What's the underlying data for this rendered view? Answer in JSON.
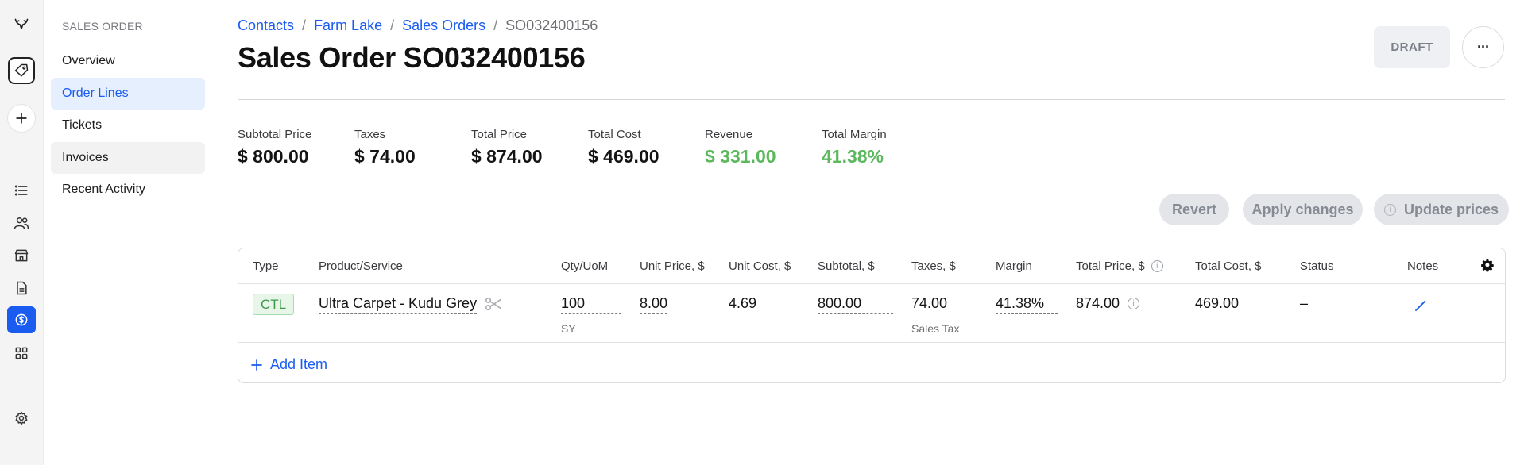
{
  "sidebar": {
    "section_title": "SALES ORDER",
    "items": [
      {
        "label": "Overview"
      },
      {
        "label": "Order Lines"
      },
      {
        "label": "Tickets"
      },
      {
        "label": "Invoices"
      },
      {
        "label": "Recent Activity"
      }
    ]
  },
  "breadcrumb": {
    "items": [
      "Contacts",
      "Farm Lake",
      "Sales Orders"
    ],
    "separator": "/",
    "current": "SO032400156"
  },
  "header": {
    "title": "Sales Order SO032400156",
    "status": "DRAFT",
    "more_label": "···"
  },
  "stats": [
    {
      "label": "Subtotal Price",
      "value": "$ 800.00"
    },
    {
      "label": "Taxes",
      "value": "$ 74.00"
    },
    {
      "label": "Total Price",
      "value": "$ 874.00"
    },
    {
      "label": "Total Cost",
      "value": "$ 469.00"
    },
    {
      "label": "Revenue",
      "value": "$ 331.00"
    },
    {
      "label": "Total Margin",
      "value": "41.38%"
    }
  ],
  "actions": {
    "revert": "Revert",
    "apply": "Apply changes",
    "update": "Update prices",
    "info_glyph": "i"
  },
  "table": {
    "columns": [
      "Type",
      "Product/Service",
      "Qty/UoM",
      "Unit Price, $",
      "Unit Cost, $",
      "Subtotal, $",
      "Taxes, $",
      "Margin",
      "Total Price, $",
      "Total Cost, $",
      "Status",
      "Notes"
    ],
    "rows": [
      {
        "type": "CTL",
        "product": "Ultra Carpet - Kudu Grey",
        "qty": "100",
        "uom": "SY",
        "unit_price": "8.00",
        "unit_cost": "4.69",
        "subtotal": "800.00",
        "taxes": "74.00",
        "tax_name": "Sales Tax",
        "margin": "41.38%",
        "total_price": "874.00",
        "total_cost": "469.00",
        "status": "–"
      }
    ],
    "add_item_label": "Add Item"
  },
  "colors": {
    "accent": "#1a5cf0",
    "positive": "#5cb85c",
    "badge_green": "#3e9a4a"
  },
  "icons": {
    "logo": "antler-logo-icon",
    "nav": [
      "tag-icon",
      "plus-icon",
      "list-icon",
      "users-icon",
      "store-icon",
      "document-icon",
      "dollar-icon",
      "grid-icon",
      "settings-icon"
    ],
    "row": [
      "scissors-icon",
      "pencil-icon",
      "info-icon"
    ],
    "table_settings": "gear-icon"
  }
}
